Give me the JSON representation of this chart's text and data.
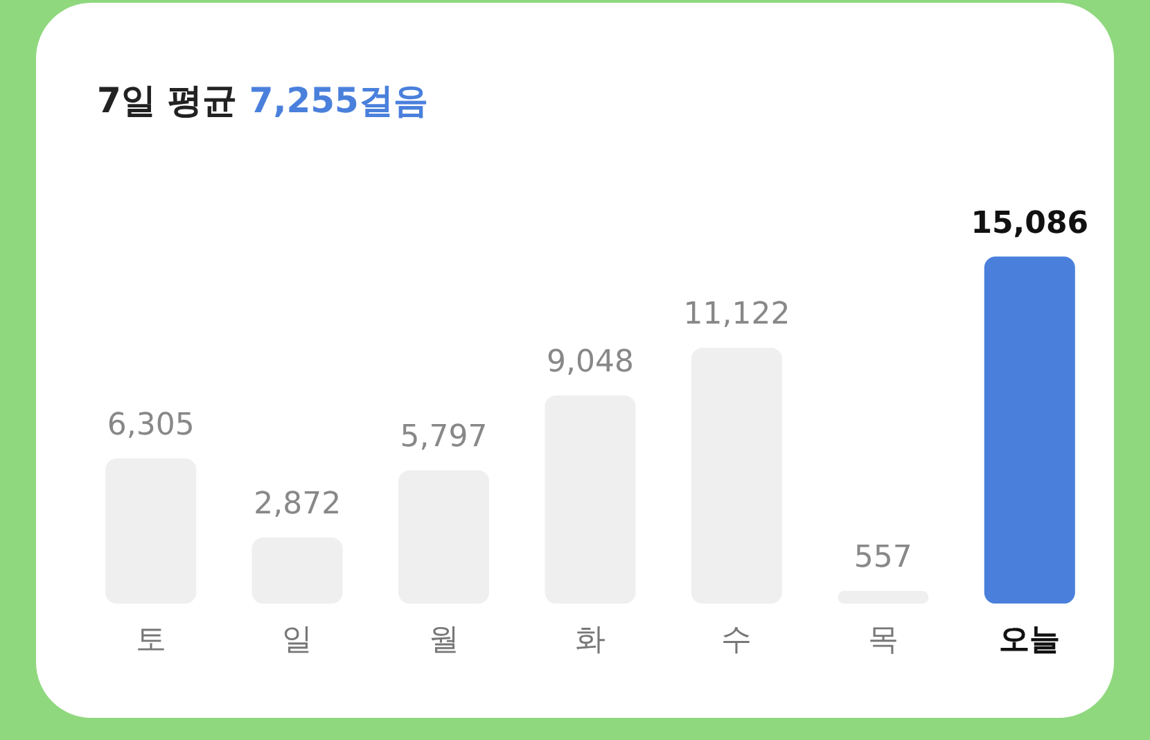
{
  "chart_data": {
    "type": "bar",
    "title": "7일 평균",
    "subtitle": "7,255걸음",
    "categories": [
      "토",
      "일",
      "월",
      "화",
      "수",
      "목",
      "오늘"
    ],
    "values": [
      6305,
      2872,
      5797,
      9048,
      11122,
      557,
      15086
    ],
    "colors": [
      "#efefef",
      "#efefef",
      "#efefef",
      "#efefef",
      "#efefef",
      "#efefef",
      "#4a80dc"
    ],
    "value_labels": [
      "6,305",
      "2,872",
      "5,797",
      "9,048",
      "11,122",
      "557",
      "15,086"
    ],
    "grid": false,
    "legend": false
  }
}
